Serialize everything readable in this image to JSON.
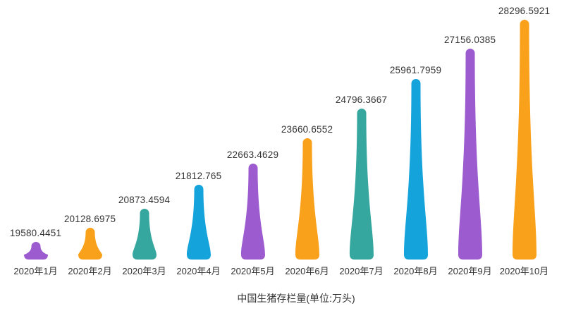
{
  "page": {
    "background": "#ffffff"
  },
  "chart_data": {
    "type": "bar",
    "variant": "pictorial-teardrop",
    "title": "中国生猪存栏量(单位:万头)",
    "title_position": "bottom",
    "categories": [
      "2020年1月",
      "2020年2月",
      "2020年3月",
      "2020年4月",
      "2020年5月",
      "2020年6月",
      "2020年7月",
      "2020年8月",
      "2020年9月",
      "2020年10月"
    ],
    "values": [
      19580.4451,
      20128.6975,
      20873.4594,
      21812.765,
      22663.4629,
      23660.6552,
      24796.3667,
      25961.7959,
      27156.0385,
      28296.5921
    ],
    "xlabel": "",
    "ylabel": "",
    "ylim": [
      18888,
      28297
    ],
    "grid": false,
    "legend": false,
    "value_labels_shown": true,
    "axis_line_shown": false,
    "palette": [
      "#9c5ccf",
      "#f9a11a",
      "#35a79f",
      "#15a3dc"
    ],
    "label_color": "#333333"
  }
}
